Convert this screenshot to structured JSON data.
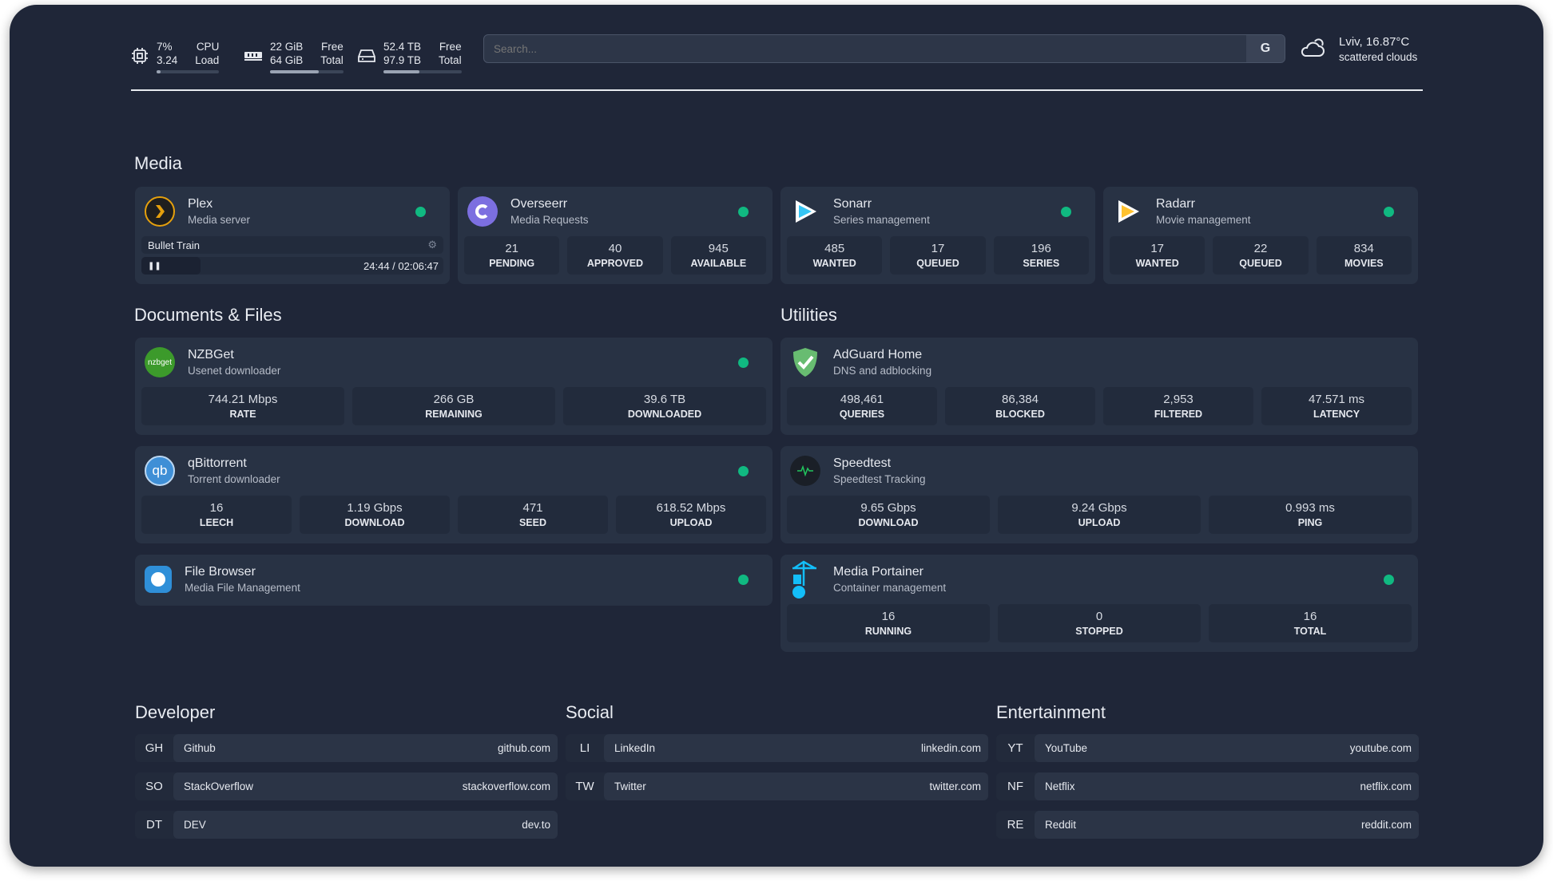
{
  "resources": {
    "cpu": {
      "value": "7%",
      "value_label": "CPU",
      "load": "3.24",
      "load_label": "Load",
      "percent": 7,
      "icon": "cpu-icon"
    },
    "memory": {
      "free": "22 GiB",
      "free_label": "Free",
      "total": "64 GiB",
      "total_label": "Total",
      "used_percent": 66,
      "icon": "memory-icon"
    },
    "disk": {
      "free": "52.4 TB",
      "free_label": "Free",
      "total": "97.9 TB",
      "total_label": "Total",
      "used_percent": 46,
      "icon": "hard-drive-icon"
    }
  },
  "search": {
    "placeholder": "Search...",
    "provider": "G"
  },
  "weather": {
    "location_temp": "Lviv, 16.87°C",
    "condition": "scattered clouds",
    "icon": "cloud-icon"
  },
  "colors": {
    "background": "#1f2638",
    "card": "#283244",
    "status_ok": "#10b981"
  },
  "media": {
    "title": "Media",
    "plex": {
      "name": "Plex",
      "desc": "Media server",
      "now_playing": "Bullet Train",
      "time": "24:44 / 02:06:47",
      "progress_percent": 19.5
    },
    "cards": [
      {
        "name": "Overseerr",
        "desc": "Media Requests",
        "stats": [
          {
            "v": "21",
            "l": "PENDING"
          },
          {
            "v": "40",
            "l": "APPROVED"
          },
          {
            "v": "945",
            "l": "AVAILABLE"
          }
        ]
      },
      {
        "name": "Sonarr",
        "desc": "Series management",
        "stats": [
          {
            "v": "485",
            "l": "WANTED"
          },
          {
            "v": "17",
            "l": "QUEUED"
          },
          {
            "v": "196",
            "l": "SERIES"
          }
        ]
      },
      {
        "name": "Radarr",
        "desc": "Movie management",
        "stats": [
          {
            "v": "17",
            "l": "WANTED"
          },
          {
            "v": "22",
            "l": "QUEUED"
          },
          {
            "v": "834",
            "l": "MOVIES"
          }
        ]
      }
    ]
  },
  "docs": {
    "title": "Documents & Files",
    "nzbget": {
      "name": "NZBGet",
      "desc": "Usenet downloader",
      "stats": [
        {
          "v": "744.21 Mbps",
          "l": "RATE"
        },
        {
          "v": "266 GB",
          "l": "REMAINING"
        },
        {
          "v": "39.6 TB",
          "l": "DOWNLOADED"
        }
      ]
    },
    "qbit": {
      "name": "qBittorrent",
      "desc": "Torrent downloader",
      "stats": [
        {
          "v": "16",
          "l": "LEECH"
        },
        {
          "v": "1.19 Gbps",
          "l": "DOWNLOAD"
        },
        {
          "v": "471",
          "l": "SEED"
        },
        {
          "v": "618.52 Mbps",
          "l": "UPLOAD"
        }
      ]
    },
    "filebrowser": {
      "name": "File Browser",
      "desc": "Media File Management"
    }
  },
  "utilities": {
    "title": "Utilities",
    "adguard": {
      "name": "AdGuard Home",
      "desc": "DNS and adblocking",
      "stats": [
        {
          "v": "498,461",
          "l": "QUERIES"
        },
        {
          "v": "86,384",
          "l": "BLOCKED"
        },
        {
          "v": "2,953",
          "l": "FILTERED"
        },
        {
          "v": "47.571 ms",
          "l": "LATENCY"
        }
      ]
    },
    "speedtest": {
      "name": "Speedtest",
      "desc": "Speedtest Tracking",
      "stats": [
        {
          "v": "9.65 Gbps",
          "l": "DOWNLOAD"
        },
        {
          "v": "9.24 Gbps",
          "l": "UPLOAD"
        },
        {
          "v": "0.993 ms",
          "l": "PING"
        }
      ]
    },
    "portainer": {
      "name": "Media Portainer",
      "desc": "Container management",
      "stats": [
        {
          "v": "16",
          "l": "RUNNING"
        },
        {
          "v": "0",
          "l": "STOPPED"
        },
        {
          "v": "16",
          "l": "TOTAL"
        }
      ]
    }
  },
  "bookmarks": [
    {
      "title": "Developer",
      "items": [
        {
          "abbr": "GH",
          "name": "Github",
          "url": "github.com"
        },
        {
          "abbr": "SO",
          "name": "StackOverflow",
          "url": "stackoverflow.com"
        },
        {
          "abbr": "DT",
          "name": "DEV",
          "url": "dev.to"
        }
      ]
    },
    {
      "title": "Social",
      "items": [
        {
          "abbr": "LI",
          "name": "LinkedIn",
          "url": "linkedin.com"
        },
        {
          "abbr": "TW",
          "name": "Twitter",
          "url": "twitter.com"
        }
      ]
    },
    {
      "title": "Entertainment",
      "items": [
        {
          "abbr": "YT",
          "name": "YouTube",
          "url": "youtube.com"
        },
        {
          "abbr": "NF",
          "name": "Netflix",
          "url": "netflix.com"
        },
        {
          "abbr": "RE",
          "name": "Reddit",
          "url": "reddit.com"
        }
      ]
    }
  ]
}
